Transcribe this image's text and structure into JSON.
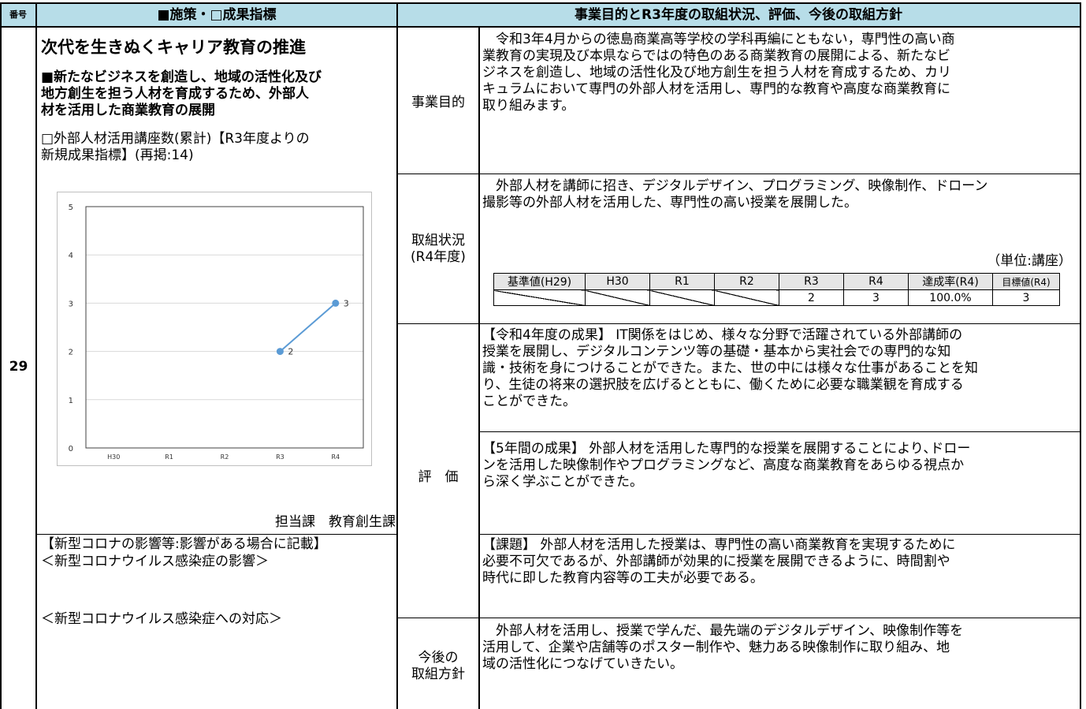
{
  "header": {
    "col_no": "番号",
    "col_policy": "■施策・□成果指標",
    "col_business": "事業目的とR3年度の取組状況、評価、今後の取組方針"
  },
  "row": {
    "number": "29",
    "policy_title": "次代を生きぬくキャリア教育の推進",
    "policy_subtitle_lines": [
      "■新たなビジネスを創造し、地域の活性化及び",
      "地方創生を担う人材を育成するため、外部人",
      "材を活用した商業教育の展開"
    ],
    "indicator_lines": [
      "□外部人材活用講座数(累計)【R3年度よりの",
      "新規成果指標】(再掲:14)"
    ],
    "department": "担当課　教育創生課",
    "corona_heading": "【新型コロナの影響等:影響がある場合に記載】",
    "corona_effect": "＜新型コロナウイルス感染症の影響＞",
    "corona_response": "＜新型コロナウイルス感染症への対応＞"
  },
  "chart_data": {
    "type": "line",
    "categories": [
      "H30",
      "R1",
      "R2",
      "R3",
      "R4"
    ],
    "series": [
      {
        "values": [
          null,
          null,
          null,
          2,
          3
        ]
      }
    ],
    "ylim": [
      0,
      5
    ],
    "yticks": [
      "0",
      "1",
      "2",
      "3",
      "4",
      "5"
    ],
    "data_labels": [
      "2",
      "3"
    ],
    "grid": true,
    "line_color": "#5b9bd5"
  },
  "purpose": {
    "label": "事業目的",
    "lines": [
      "令和3年4月からの徳島商業高等学校の学科再編にともない，専門性の高い商",
      "業教育の実現及び本県ならではの特色のある商業教育の展開による、新たなビ",
      "ジネスを創造し、地域の活性化及び地方創生を担う人材を育成するため、カリ",
      "キュラムにおいて専門の外部人材を活用し、専門的な教育や高度な商業教育に",
      "取り組みます。"
    ]
  },
  "status": {
    "label_line1": "取組状況",
    "label_line2": "(R4年度)",
    "lines": [
      "外部人材を講師に招き、デジタルデザイン、プログラミング、映像制作、ドローン",
      "撮影等の外部人材を活用した、専門性の高い授業を展開した。"
    ],
    "unit": "（単位:講座）",
    "table_headers": [
      "基準値(H29)",
      "H30",
      "R1",
      "R2",
      "R3",
      "R4",
      "達成率(R4)",
      "目標値(R4)"
    ],
    "table_values": [
      "",
      "",
      "",
      "",
      "2",
      "3",
      "100.0%",
      "3"
    ]
  },
  "evaluation": {
    "label": "評　価",
    "result_r4": [
      "【令和4年度の成果】 IT関係をはじめ、様々な分野で活躍されている外部講師の",
      "授業を展開し、デジタルコンテンツ等の基礎・基本から実社会での専門的な知",
      "識・技術を身につけることができた。また、世の中には様々な仕事があることを知",
      "り、生徒の将来の選択肢を広げるとともに、働くために必要な職業観を育成する",
      "ことができた。"
    ],
    "result_5y": [
      "【5年間の成果】 外部人材を活用した専門的な授業を展開することにより､ドロー",
      "ンを活用した映像制作やプログラミングなど、高度な商業教育をあらゆる視点か",
      "ら深く学ぶことができた。"
    ],
    "issues": [
      "【課題】 外部人材を活用した授業は、専門性の高い商業教育を実現するために",
      "必要不可欠であるが、外部講師が効果的に授業を展開できるように、時間割や",
      "時代に即した教育内容等の工夫が必要である。"
    ]
  },
  "future": {
    "label_line1": "今後の",
    "label_line2": "取組方針",
    "lines": [
      "外部人材を活用し、授業で学んだ、最先端のデジタルデザイン、映像制作等を",
      "活用して、企業や店舗等のポスター制作や、魅力ある映像制作に取り組み、地",
      "域の活性化につなげていきたい。"
    ]
  }
}
